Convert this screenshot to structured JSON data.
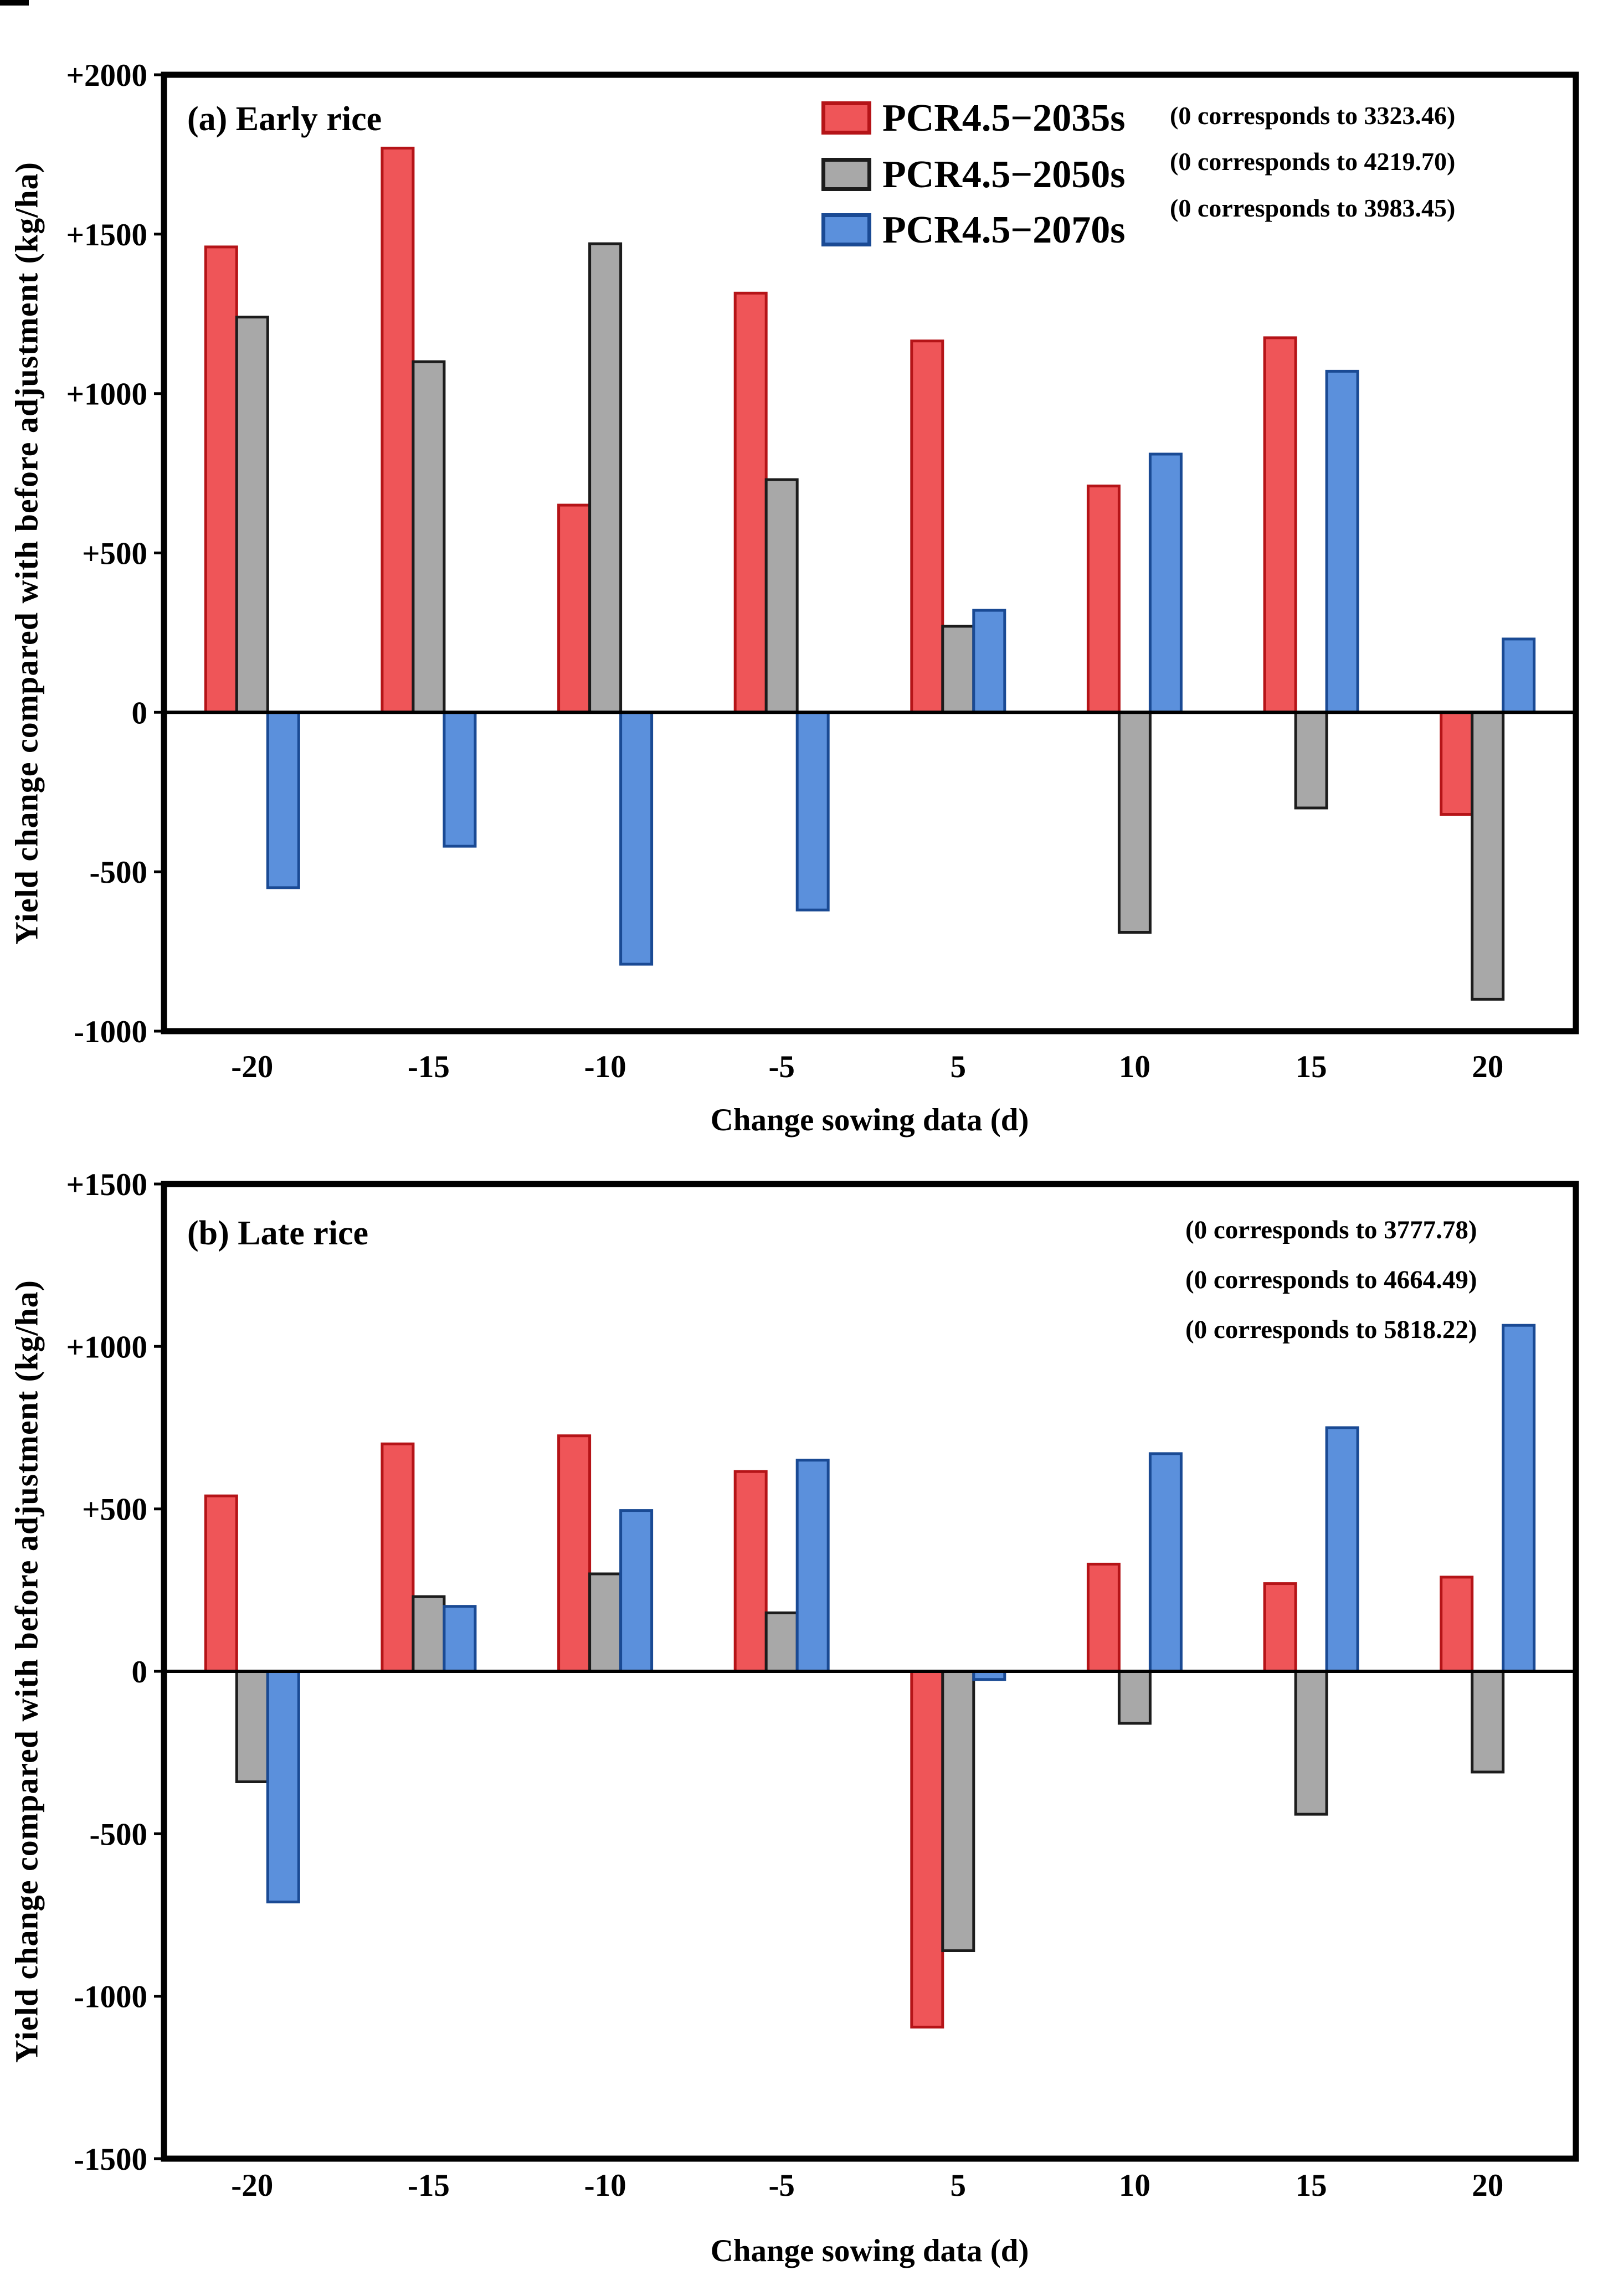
{
  "chart_data": [
    {
      "type": "bar",
      "panel_label": "(a) Early rice",
      "xlabel": "Change sowing data (d)",
      "ylabel": "Yield change compared with before adjustment (kg/ha)",
      "categories": [
        "-20",
        "-15",
        "-10",
        "-5",
        "5",
        "10",
        "15",
        "20"
      ],
      "ylim": [
        -1000,
        2000
      ],
      "ytick_values": [
        2000,
        1500,
        1000,
        500,
        0,
        -500,
        -1000
      ],
      "ytick_labels": [
        "+2000",
        "+1500",
        "+1000",
        "+500",
        "0",
        "-500",
        "-1000"
      ],
      "grid": false,
      "legend_position": "top-center-inside",
      "series": [
        {
          "name": "PCR4.5−2035s",
          "annotation": "(0 corresponds to 3323.46)",
          "color": "#ef5558",
          "border": "#b51418",
          "values": [
            1460,
            1770,
            650,
            1315,
            1165,
            710,
            1175,
            -320
          ]
        },
        {
          "name": "PCR4.5−2050s",
          "annotation": "(0 corresponds to 4219.70)",
          "color": "#a8a8a8",
          "border": "#1c1c1c",
          "values": [
            1240,
            1100,
            1470,
            730,
            270,
            -690,
            -300,
            -900
          ]
        },
        {
          "name": "PCR4.5−2070s",
          "annotation": "(0 corresponds to 3983.45)",
          "color": "#5b90dc",
          "border": "#1a4a94",
          "values": [
            -550,
            -420,
            -790,
            -620,
            320,
            810,
            1070,
            230
          ]
        }
      ]
    },
    {
      "type": "bar",
      "panel_label": "(b) Late rice",
      "xlabel": "Change sowing data (d)",
      "ylabel": "Yield change compared with before adjustment (kg/ha)",
      "categories": [
        "-20",
        "-15",
        "-10",
        "-5",
        "5",
        "10",
        "15",
        "20"
      ],
      "ylim": [
        -1500,
        1500
      ],
      "ytick_values": [
        1500,
        1000,
        500,
        0,
        -500,
        -1000,
        -1500
      ],
      "ytick_labels": [
        "+1500",
        "+1000",
        "+500",
        "0",
        "-500",
        "-1000",
        "-1500"
      ],
      "grid": false,
      "legend_position": "none",
      "annotations": [
        "(0 corresponds to 3777.78)",
        "(0 corresponds to 4664.49)",
        "(0 corresponds to 5818.22)"
      ],
      "series": [
        {
          "name": "PCR4.5−2035s",
          "color": "#ef5558",
          "border": "#b51418",
          "values": [
            540,
            700,
            725,
            615,
            -1095,
            330,
            270,
            290
          ]
        },
        {
          "name": "PCR4.5−2050s",
          "color": "#a8a8a8",
          "border": "#1c1c1c",
          "values": [
            -340,
            230,
            300,
            180,
            -860,
            -160,
            -440,
            -310
          ]
        },
        {
          "name": "PCR4.5−2070s",
          "color": "#5b90dc",
          "border": "#1a4a94",
          "values": [
            -710,
            200,
            495,
            650,
            -25,
            670,
            750,
            1065
          ]
        }
      ]
    }
  ]
}
